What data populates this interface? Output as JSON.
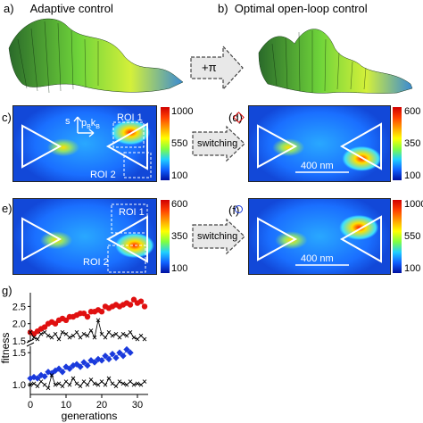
{
  "panels": {
    "a": {
      "letter": "a)",
      "title": "Adaptive control"
    },
    "b": {
      "letter": "b)",
      "title": "Optimal open-loop control"
    },
    "c": {
      "letter": "c)",
      "legend_s": "s",
      "legend_p": "p",
      "legend_sub": "B",
      "legend_k": "k",
      "legend_ksub": "B",
      "roi1": "ROI 1",
      "roi2": "ROI 2",
      "cbar_ticks": [
        "1000",
        "550",
        "100"
      ]
    },
    "d": {
      "letter": "(d)",
      "scale": "400 nm",
      "cbar_ticks": [
        "600",
        "350",
        "100"
      ]
    },
    "e": {
      "letter": "e)",
      "roi1": "ROI 1",
      "roi2": "ROI 2",
      "cbar_ticks": [
        "600",
        "350",
        "100"
      ]
    },
    "f": {
      "letter": "(f)",
      "scale": "400 nm",
      "cbar_ticks": [
        "1000",
        "550",
        "100"
      ]
    },
    "g": {
      "letter": "g)"
    }
  },
  "arrows": {
    "phase": "+π",
    "switch1": "switching",
    "switch2": "switching"
  },
  "colors": {
    "red_series": "#e01010",
    "blue_series": "#1a3adc",
    "cross_series": "#000000"
  },
  "chart_data": {
    "type": "line",
    "xlabel": "generations",
    "ylabel": "fitness",
    "xlim": [
      0,
      33
    ],
    "x_ticks": [
      "0",
      "10",
      "20",
      "30"
    ],
    "upper_panel": {
      "ylim": [
        1.5,
        2.9
      ],
      "y_ticks": [
        "2.5",
        "2.0",
        "1.5"
      ],
      "series": [
        {
          "marker": "circle",
          "color": "red",
          "x": [
            0,
            1,
            2,
            3,
            4,
            5,
            6,
            7,
            8,
            9,
            10,
            11,
            12,
            13,
            14,
            15,
            16,
            17,
            18,
            19,
            20,
            21,
            22,
            23,
            24,
            25,
            26,
            27,
            28,
            29,
            30,
            31,
            32
          ],
          "values": [
            1.75,
            1.7,
            1.78,
            1.85,
            1.9,
            2.0,
            2.05,
            2.0,
            2.1,
            2.15,
            2.1,
            2.2,
            2.2,
            2.25,
            2.3,
            2.3,
            2.2,
            2.35,
            2.35,
            2.4,
            2.35,
            2.5,
            2.45,
            2.5,
            2.55,
            2.5,
            2.55,
            2.6,
            2.55,
            2.7,
            2.6,
            2.65,
            2.5
          ]
        },
        {
          "marker": "cross",
          "color": "black",
          "x": [
            0,
            1,
            2,
            3,
            4,
            5,
            6,
            7,
            8,
            9,
            10,
            11,
            12,
            13,
            14,
            15,
            16,
            17,
            18,
            19,
            20,
            21,
            22,
            23,
            24,
            25,
            26,
            27,
            28,
            29,
            30,
            31,
            32
          ],
          "values": [
            1.75,
            1.6,
            1.55,
            1.7,
            1.75,
            1.65,
            1.6,
            1.7,
            1.55,
            1.75,
            1.7,
            1.6,
            1.65,
            1.75,
            1.6,
            1.7,
            1.65,
            1.8,
            1.6,
            2.1,
            1.7,
            1.6,
            1.75,
            1.65,
            1.7,
            1.6,
            1.7,
            1.65,
            1.75,
            1.6,
            1.55,
            1.65,
            1.55
          ]
        }
      ]
    },
    "lower_panel": {
      "ylim": [
        0.85,
        1.6
      ],
      "y_ticks": [
        "1.5",
        "1.0"
      ],
      "series": [
        {
          "marker": "diamond",
          "color": "blue",
          "x": [
            0,
            1,
            2,
            3,
            4,
            5,
            6,
            7,
            8,
            9,
            10,
            11,
            12,
            13,
            14,
            15,
            16,
            17,
            18,
            19,
            20,
            21,
            22,
            23,
            24,
            25,
            26,
            27,
            28
          ],
          "values": [
            1.1,
            1.12,
            1.1,
            1.15,
            1.13,
            1.2,
            1.18,
            1.22,
            1.25,
            1.2,
            1.28,
            1.25,
            1.3,
            1.32,
            1.28,
            1.35,
            1.3,
            1.38,
            1.35,
            1.4,
            1.38,
            1.45,
            1.4,
            1.48,
            1.42,
            1.5,
            1.45,
            1.55,
            1.5
          ]
        },
        {
          "marker": "cross",
          "color": "black",
          "x": [
            0,
            1,
            2,
            3,
            4,
            5,
            6,
            7,
            8,
            9,
            10,
            11,
            12,
            13,
            14,
            15,
            16,
            17,
            18,
            19,
            20,
            21,
            22,
            23,
            24,
            25,
            26,
            27,
            28,
            29,
            30,
            31,
            32
          ],
          "values": [
            1.0,
            1.02,
            0.98,
            1.05,
            1.0,
            0.95,
            1.15,
            1.0,
            1.02,
            0.98,
            1.05,
            1.0,
            1.1,
            1.02,
            0.98,
            1.05,
            1.0,
            1.08,
            1.02,
            1.0,
            1.05,
            1.0,
            1.1,
            1.02,
            0.98,
            1.05,
            1.02,
            1.0,
            1.05,
            1.0,
            1.02,
            1.0,
            1.05
          ]
        }
      ]
    }
  }
}
